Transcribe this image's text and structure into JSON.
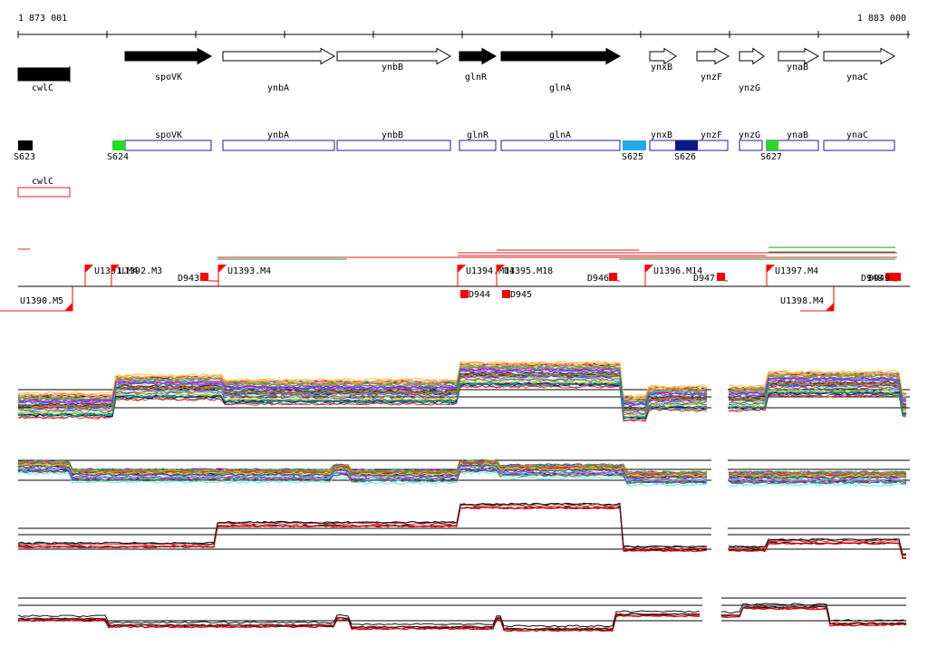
{
  "coords": {
    "start": "1 873 001",
    "end": "1 883 000"
  },
  "genes": [
    {
      "name": "cwlC",
      "shape": "box",
      "fill": "#000000"
    },
    {
      "name": "spoVK",
      "shape": "arrow",
      "fill": "#000000"
    },
    {
      "name": "ynbA",
      "shape": "arrow",
      "fill": "#ffffff"
    },
    {
      "name": "ynbB",
      "shape": "arrow",
      "fill": "#ffffff"
    },
    {
      "name": "glnR",
      "shape": "arrow",
      "fill": "#000000"
    },
    {
      "name": "glnA",
      "shape": "arrow",
      "fill": "#000000"
    },
    {
      "name": "ynxB",
      "shape": "arrow",
      "fill": "#ffffff"
    },
    {
      "name": "ynzF",
      "shape": "arrow",
      "fill": "#ffffff"
    },
    {
      "name": "ynzG",
      "shape": "arrow",
      "fill": "#ffffff"
    },
    {
      "name": "ynaB",
      "shape": "arrow",
      "fill": "#ffffff"
    },
    {
      "name": "ynaC",
      "shape": "arrow",
      "fill": "#ffffff"
    }
  ],
  "annotations": [
    "spoVK",
    "ynbA",
    "ynbB",
    "glnR",
    "glnA",
    "ynxB",
    "ynzF",
    "ynzG",
    "ynaB",
    "ynaC"
  ],
  "reverse_annotations": [
    "cwlC"
  ],
  "sites": [
    {
      "name": "S623",
      "color": "#000000"
    },
    {
      "name": "S624",
      "color": "#22dd22"
    },
    {
      "name": "S625",
      "color": "#22aaee"
    },
    {
      "name": "S626",
      "color": "#0a1a8a"
    },
    {
      "name": "S627",
      "color": "#22dd22"
    }
  ],
  "units_up": [
    "U1391.M4",
    "U1392.M3",
    "U1393.M4",
    "U1394.M14",
    "U1395.M18",
    "U1396.M14",
    "U1397.M4"
  ],
  "units_down": [
    "U1390.M5",
    "U1398.M4"
  ],
  "domains_up": [
    "D943",
    "D946",
    "D947",
    "D948",
    "D949"
  ],
  "domains_down": [
    "D944",
    "D945"
  ],
  "colors": {
    "annotation_border": "#1a1aaa",
    "reverse_border": "#dd2222",
    "marker": "#ff0000"
  }
}
